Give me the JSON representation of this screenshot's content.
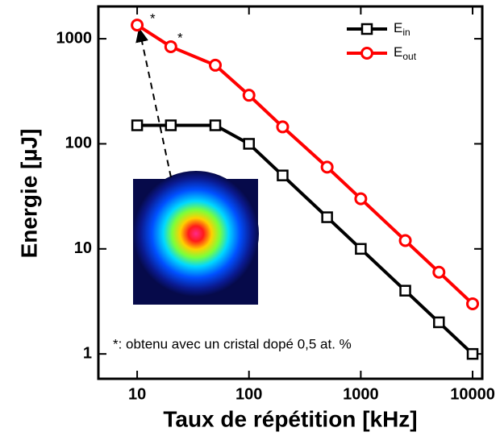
{
  "chart_data": {
    "type": "line",
    "x_label": "Taux de répétition [kHz]",
    "y_label": "Energie [µJ]",
    "x": [
      10,
      20,
      50,
      100,
      200,
      500,
      1000,
      2500,
      5000,
      10000
    ],
    "series": [
      {
        "name": "Ein",
        "color": "#000000",
        "marker": "square",
        "values": [
          150,
          150,
          150,
          100,
          50,
          20,
          10,
          4,
          2,
          1
        ]
      },
      {
        "name": "Eout",
        "color": "#ff0000",
        "marker": "circle",
        "values": [
          1350,
          840,
          560,
          290,
          145,
          60,
          30,
          12,
          6,
          3
        ]
      }
    ],
    "xlim": [
      4.5,
      12200
    ],
    "ylim": [
      0.58,
      2030
    ],
    "xticks": [
      10,
      100,
      1000,
      10000
    ],
    "yticks": [
      1,
      10,
      100,
      1000
    ],
    "log_x": true,
    "log_y": true,
    "legend": "upper right",
    "annotations": [
      "*",
      "*",
      "*: obtenu avec un cristal dopé 0,5 at. %"
    ]
  }
}
